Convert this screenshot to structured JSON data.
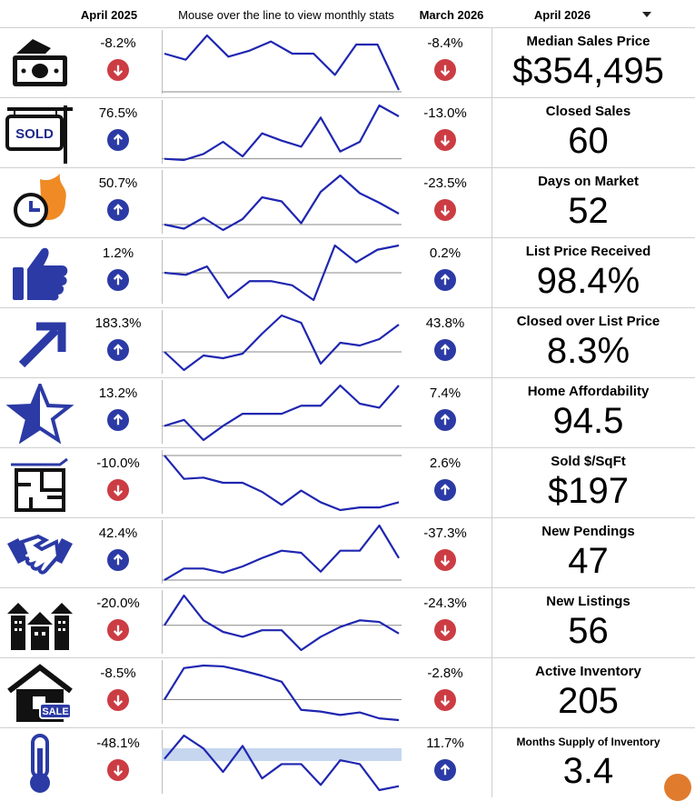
{
  "header": {
    "col1": "April 2025",
    "col2": "Mouse over the line to view monthly stats",
    "col3": "March 2026",
    "col4": "April 2026"
  },
  "colors": {
    "up": "#2b3aa5",
    "down": "#cc3c43",
    "line": "#1f26b0"
  },
  "metrics": [
    {
      "label": "Median Sales Price",
      "value": "$354,495",
      "yoy": "-8.2%",
      "yoy_dir": "down",
      "mom": "-8.4%",
      "mom_dir": "down",
      "icon": "money-icon",
      "spark": [
        72,
        70,
        78,
        71,
        73,
        76,
        72,
        72,
        65,
        75,
        75,
        60
      ]
    },
    {
      "label": "Closed Sales",
      "value": "60",
      "yoy": "76.5%",
      "yoy_dir": "up",
      "mom": "-13.0%",
      "mom_dir": "down",
      "icon": "sold-sign-icon",
      "spark": [
        34,
        33,
        38,
        48,
        36,
        55,
        49,
        44,
        68,
        40,
        48,
        78,
        69
      ]
    },
    {
      "label": "Days on Market",
      "value": "52",
      "yoy": "50.7%",
      "yoy_dir": "up",
      "mom": "-23.5%",
      "mom_dir": "down",
      "icon": "clock-fire-icon",
      "spark": [
        38,
        35,
        43,
        34,
        42,
        58,
        55,
        39,
        62,
        74,
        61,
        54,
        46
      ]
    },
    {
      "label": "List Price Received",
      "value": "98.4%",
      "yoy": "1.2%",
      "yoy_dir": "up",
      "mom": "0.2%",
      "mom_dir": "up",
      "icon": "thumbs-up-icon",
      "spark": [
        62,
        61,
        65,
        50,
        58,
        58,
        56,
        49,
        75,
        67,
        73,
        75
      ]
    },
    {
      "label": "Closed over List Price",
      "value": "8.3%",
      "yoy": "183.3%",
      "yoy_dir": "up",
      "mom": "43.8%",
      "mom_dir": "up",
      "icon": "arrow-up-right-icon",
      "spark": [
        28,
        8,
        24,
        21,
        26,
        48,
        68,
        60,
        15,
        38,
        35,
        42,
        58
      ]
    },
    {
      "label": "Home Affordability",
      "value": "94.5",
      "yoy": "13.2%",
      "yoy_dir": "up",
      "mom": "7.4%",
      "mom_dir": "up",
      "icon": "star-icon",
      "spark": [
        38,
        41,
        31,
        38,
        44,
        44,
        44,
        48,
        48,
        58,
        49,
        47,
        58
      ]
    },
    {
      "label": "Sold $/SqFt",
      "value": "$197",
      "yoy": "-10.0%",
      "yoy_dir": "down",
      "mom": "2.6%",
      "mom_dir": "up",
      "icon": "floor-plan-icon",
      "spark": [
        80,
        62,
        63,
        59,
        59,
        52,
        42,
        53,
        44,
        38,
        40,
        40,
        44
      ]
    },
    {
      "label": "New Pendings",
      "value": "47",
      "yoy": "42.4%",
      "yoy_dir": "up",
      "mom": "-37.3%",
      "mom_dir": "down",
      "icon": "handshake-icon",
      "spark": [
        6,
        17,
        17,
        13,
        19,
        27,
        34,
        32,
        14,
        34,
        34,
        58,
        27
      ]
    },
    {
      "label": "New Listings",
      "value": "56",
      "yoy": "-20.0%",
      "yoy_dir": "down",
      "mom": "-24.3%",
      "mom_dir": "down",
      "icon": "houses-icon",
      "spark": [
        55,
        73,
        58,
        51,
        48,
        52,
        52,
        40,
        48,
        54,
        58,
        57,
        50
      ]
    },
    {
      "label": "Active Inventory",
      "value": "205",
      "yoy": "-8.5%",
      "yoy_dir": "down",
      "mom": "-2.8%",
      "mom_dir": "down",
      "icon": "house-sale-icon",
      "spark": [
        50,
        87,
        90,
        89,
        84,
        78,
        71,
        38,
        36,
        32,
        35,
        28,
        26
      ]
    },
    {
      "label": "Months Supply of Inventory",
      "value": "3.4",
      "yoy": "-48.1%",
      "yoy_dir": "down",
      "mom": "11.7%",
      "mom_dir": "up",
      "icon": "thermometer-icon",
      "spark": [
        7.0,
        8.8,
        7.8,
        6.0,
        8.0,
        5.5,
        6.6,
        6.6,
        5.0,
        6.9,
        6.6,
        4.6,
        4.9
      ]
    }
  ]
}
